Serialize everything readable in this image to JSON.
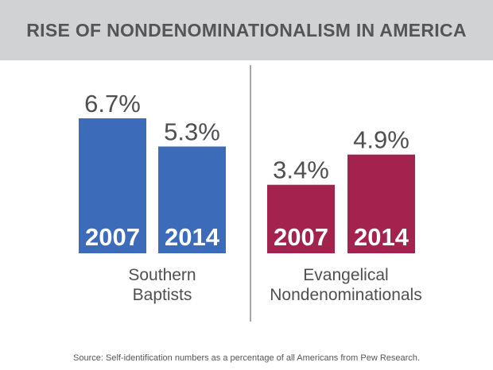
{
  "colors": {
    "header_bg": "#d1d2d4",
    "southern_baptists": "#3b6bb9",
    "evangelical_nondenominationals": "#a3234e",
    "text": "#4f4f52",
    "divider": "#8a8a8c"
  },
  "chart_data": {
    "type": "bar",
    "title": "RISE OF NONDENOMINATIONALISM IN AMERICA",
    "ylim": [
      0,
      7.5
    ],
    "grid": false,
    "groups": [
      {
        "label_lines": [
          "Southern",
          "Baptists"
        ],
        "color": "#3b6bb9",
        "bars": [
          {
            "year": "2007",
            "value": 6.7,
            "value_label": "6.7%"
          },
          {
            "year": "2014",
            "value": 5.3,
            "value_label": "5.3%"
          }
        ]
      },
      {
        "label_lines": [
          "Evangelical",
          "Nondenominationals"
        ],
        "color": "#a3234e",
        "bars": [
          {
            "year": "2007",
            "value": 3.4,
            "value_label": "3.4%"
          },
          {
            "year": "2014",
            "value": 4.9,
            "value_label": "4.9%"
          }
        ]
      }
    ],
    "source": "Source: Self-identification numbers as a percentage of all Americans from Pew Research."
  }
}
